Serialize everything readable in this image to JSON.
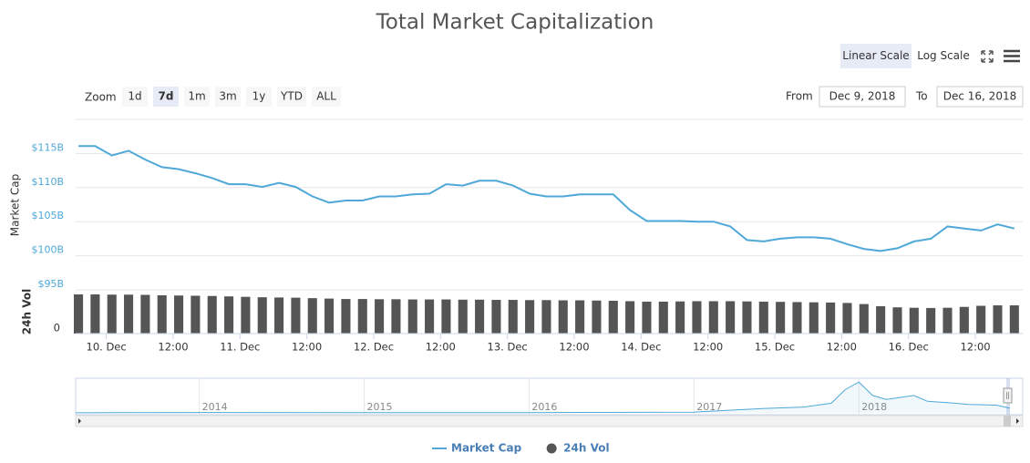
{
  "chart_data": {
    "type": "line",
    "title": "Total Market Capitalization",
    "controls": {
      "scale_options": [
        "Linear Scale",
        "Log Scale"
      ],
      "active_scale": "Linear Scale",
      "zoom_label": "Zoom",
      "zoom_options": [
        "1d",
        "7d",
        "1m",
        "3m",
        "1y",
        "YTD",
        "ALL"
      ],
      "active_zoom": "7d",
      "from_label": "From",
      "from": "Dec 9, 2018",
      "to_label": "To",
      "to": "Dec 16, 2018"
    },
    "ylabel": "Market Cap",
    "y2label": "24h Vol",
    "x": [
      "2018-12-09T19:00",
      "2018-12-09T22:00",
      "2018-12-10T01:00",
      "2018-12-10T04:00",
      "2018-12-10T07:00",
      "2018-12-10T10:00",
      "2018-12-10T13:00",
      "2018-12-10T16:00",
      "2018-12-10T19:00",
      "2018-12-10T22:00",
      "2018-12-11T01:00",
      "2018-12-11T04:00",
      "2018-12-11T07:00",
      "2018-12-11T10:00",
      "2018-12-11T13:00",
      "2018-12-11T16:00",
      "2018-12-11T19:00",
      "2018-12-11T22:00",
      "2018-12-12T01:00",
      "2018-12-12T04:00",
      "2018-12-12T07:00",
      "2018-12-12T10:00",
      "2018-12-12T13:00",
      "2018-12-12T16:00",
      "2018-12-12T19:00",
      "2018-12-12T22:00",
      "2018-12-13T01:00",
      "2018-12-13T04:00",
      "2018-12-13T07:00",
      "2018-12-13T10:00",
      "2018-12-13T13:00",
      "2018-12-13T16:00",
      "2018-12-13T19:00",
      "2018-12-13T22:00",
      "2018-12-14T01:00",
      "2018-12-14T04:00",
      "2018-12-14T07:00",
      "2018-12-14T10:00",
      "2018-12-14T13:00",
      "2018-12-14T16:00",
      "2018-12-14T19:00",
      "2018-12-14T22:00",
      "2018-12-15T01:00",
      "2018-12-15T04:00",
      "2018-12-15T07:00",
      "2018-12-15T10:00",
      "2018-12-15T13:00",
      "2018-12-15T16:00",
      "2018-12-15T19:00",
      "2018-12-15T22:00",
      "2018-12-16T01:00",
      "2018-12-16T04:00",
      "2018-12-16T07:00",
      "2018-12-16T10:00",
      "2018-12-16T13:00",
      "2018-12-16T16:00",
      "2018-12-16T19:00"
    ],
    "xlim": [
      "2018-12-09T18:30",
      "2018-12-16T20:30"
    ],
    "xticks": [
      {
        "value": "2018-12-10T00:00",
        "label": "10. Dec"
      },
      {
        "value": "2018-12-10T12:00",
        "label": "12:00"
      },
      {
        "value": "2018-12-11T00:00",
        "label": "11. Dec"
      },
      {
        "value": "2018-12-11T12:00",
        "label": "12:00"
      },
      {
        "value": "2018-12-12T00:00",
        "label": "12. Dec"
      },
      {
        "value": "2018-12-12T12:00",
        "label": "12:00"
      },
      {
        "value": "2018-12-13T00:00",
        "label": "13. Dec"
      },
      {
        "value": "2018-12-13T12:00",
        "label": "12:00"
      },
      {
        "value": "2018-12-14T00:00",
        "label": "14. Dec"
      },
      {
        "value": "2018-12-14T12:00",
        "label": "12:00"
      },
      {
        "value": "2018-12-15T00:00",
        "label": "15. Dec"
      },
      {
        "value": "2018-12-15T12:00",
        "label": "12:00"
      },
      {
        "value": "2018-12-16T00:00",
        "label": "16. Dec"
      },
      {
        "value": "2018-12-16T12:00",
        "label": "12:00"
      }
    ],
    "ylim": [
      95,
      120
    ],
    "yticks": [
      {
        "value": 95,
        "label": "$95B"
      },
      {
        "value": 100,
        "label": "$100B"
      },
      {
        "value": 105,
        "label": "$105B"
      },
      {
        "value": 110,
        "label": "$110B"
      },
      {
        "value": 115,
        "label": "$115B"
      }
    ],
    "y2lim": [
      0,
      20
    ],
    "y2ticks": [
      0
    ],
    "grid": true,
    "legend": "bottom",
    "series": [
      {
        "name": "Market Cap",
        "color": "#4fa8d8",
        "values": [
          116.1,
          116.1,
          114.7,
          115.4,
          114.1,
          113.0,
          112.7,
          112.1,
          111.4,
          110.5,
          110.5,
          110.1,
          110.7,
          110.1,
          108.7,
          107.8,
          108.1,
          108.1,
          108.7,
          108.7,
          109.0,
          109.1,
          110.5,
          110.3,
          111.0,
          111.0,
          110.3,
          109.1,
          108.7,
          108.7,
          109.0,
          109.0,
          109.0,
          106.7,
          105.1,
          105.1,
          105.1,
          105.0,
          105.0,
          104.3,
          102.3,
          102.1,
          102.5,
          102.7,
          102.7,
          102.5,
          101.7,
          101.0,
          100.7,
          101.1,
          102.1,
          102.5,
          104.3,
          104.0,
          103.7,
          104.6,
          104.0
        ]
      },
      {
        "name": "24h Vol",
        "type": "bar",
        "color": "#555555",
        "axis": "y2",
        "values": [
          17.9,
          17.9,
          17.8,
          17.8,
          17.7,
          17.5,
          17.4,
          17.3,
          17.2,
          17,
          16.8,
          16.6,
          16.5,
          16.4,
          16.2,
          16,
          15.8,
          15.8,
          15.7,
          15.7,
          15.6,
          15.6,
          15.6,
          15.5,
          15.5,
          15.4,
          15.4,
          15.3,
          15.3,
          15.2,
          15.2,
          15.1,
          15,
          14.8,
          14.6,
          14.6,
          14.7,
          14.8,
          14.8,
          14.8,
          14.7,
          14.6,
          14.5,
          14.4,
          14.3,
          14.2,
          14,
          13.5,
          12.5,
          12,
          11.8,
          11.7,
          11.8,
          12.2,
          12.7,
          12.9,
          12.9
        ]
      }
    ],
    "navigator": {
      "x": [
        "2013-04",
        "2014-01",
        "2015-01",
        "2016-01",
        "2017-01",
        "2017-06",
        "2017-09",
        "2017-11",
        "2017-12",
        "2018-01",
        "2018-02",
        "2018-03",
        "2018-04",
        "2018-05",
        "2018-06",
        "2018-08",
        "2018-09",
        "2018-11",
        "2018-12"
      ],
      "values": [
        2,
        10,
        5,
        7,
        18,
        110,
        150,
        250,
        600,
        800,
        450,
        350,
        400,
        450,
        300,
        250,
        220,
        200,
        120
      ],
      "xlim": [
        "2013-04",
        "2018-12"
      ],
      "ylim": [
        0,
        850
      ],
      "xticks": [
        {
          "value": "2014-01",
          "label": "2014"
        },
        {
          "value": "2015-01",
          "label": "2015"
        },
        {
          "value": "2016-01",
          "label": "2016"
        },
        {
          "value": "2017-01",
          "label": "2017"
        },
        {
          "value": "2018-01",
          "label": "2018"
        }
      ]
    }
  }
}
